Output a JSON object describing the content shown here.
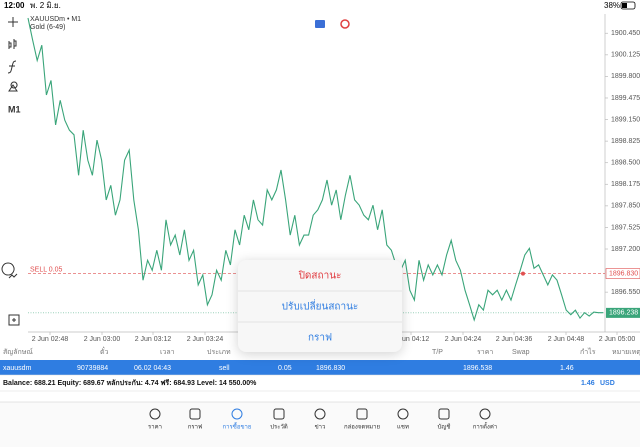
{
  "status": {
    "time": "12:00",
    "date": "พ. 2 มิ.ย.",
    "battery": "38%"
  },
  "chart": {
    "type": "line",
    "symbol": "XAUUSDm • M1",
    "description": "Gold (6-49)",
    "timeframe": "M1",
    "color": "#3aa57a",
    "values": [
      1900.68,
      1900.35,
      1900.04,
      1900.27,
      1899.52,
      1899.74,
      1899.07,
      1899.44,
      1899.14,
      1898.99,
      1898.92,
      1898.31,
      1898.99,
      1898.54,
      1898.31,
      1898.84,
      1898.54,
      1897.94,
      1898.16,
      1897.71,
      1897.94,
      1898.54,
      1898.69,
      1897.94,
      1897.49,
      1896.73,
      1897.03,
      1896.88,
      1897.18,
      1896.88,
      1897.64,
      1897.26,
      1897.41,
      1897.11,
      1897.49,
      1897.03,
      1897.18,
      1896.66,
      1896.81,
      1896.36,
      1896.51,
      1896.88,
      1896.73,
      1897.18,
      1896.96,
      1897.49,
      1897.26,
      1897.71,
      1897.49,
      1897.94,
      1897.64,
      1897.56,
      1898.09,
      1897.94,
      1898.09,
      1898.39,
      1897.94,
      1897.41,
      1897.71,
      1897.26,
      1897.41,
      1897.41,
      1897.71,
      1897.79,
      1897.94,
      1898.24,
      1897.86,
      1898.09,
      1897.64,
      1898.01,
      1898.31,
      1897.94,
      1897.86,
      1897.71,
      1897.64,
      1897.86,
      1897.49,
      1897.79,
      1897.26,
      1897.18,
      1896.96,
      1896.88,
      1897.03,
      1896.58,
      1896.43,
      1897.03,
      1896.73,
      1896.96,
      1896.81,
      1896.96,
      1896.81,
      1897.11,
      1897.33,
      1897.03,
      1896.88,
      1896.58,
      1896.36,
      1896.13,
      1896.36,
      1896.28,
      1896.58,
      1896.51,
      1896.58,
      1896.43,
      1896.58,
      1896.43,
      1896.66,
      1896.88,
      1897.11,
      1897.21,
      1896.91,
      1896.96,
      1896.81,
      1896.66,
      1896.81,
      1896.73,
      1896.51,
      1896.28,
      1896.21,
      1896.28,
      1896.16,
      1896.24,
      1896.19,
      1896.25,
      1896.24,
      1896.24
    ],
    "ylim": [
      1895.98,
      1900.74
    ],
    "yticks": [
      {
        "value": 1900.45,
        "label": "1900.450"
      },
      1900.125,
      {
        "value": 1899.8,
        "label": "1899.800"
      },
      1899.475,
      {
        "value": 1899.15,
        "label": "1899.150"
      },
      1898.825,
      {
        "value": 1898.5,
        "label": "1898.500"
      },
      1898.175,
      {
        "value": 1897.85,
        "label": "1897.850"
      },
      1897.525,
      {
        "value": 1897.2,
        "label": "1897.200"
      },
      {
        "value": 1896.55,
        "label": "1896.550"
      }
    ],
    "xticks": [
      "2 Jun 02:48",
      "2 Jun 03:00",
      "2 Jun 03:12",
      "2 Jun 03:24",
      "2 Jun 04:12",
      "2 Jun 04:24",
      "2 Jun 04:36",
      "2 Jun 04:48",
      "2 Jun 05:00"
    ],
    "sell_label": "SELL 0.05",
    "sell_price": {
      "value": 1896.83,
      "label": "1896.830"
    },
    "current_price": 1896.238
  },
  "menu": {
    "items": [
      "ปิดสถานะ",
      "ปรับเปลี่ยนสถานะ",
      "กราฟ"
    ]
  },
  "table": {
    "headers": [
      "สัญลักษณ์",
      "ตั๋ว",
      "เวลา",
      "ประเภท",
      "T/P",
      "ราคา",
      "Swap",
      "กำไร",
      "หมายเหตุ"
    ],
    "rows": [
      [
        "xauusdm",
        "90739884",
        "06.02 04:43",
        "sell",
        "0.05",
        "1896.830",
        "1896.538",
        "1.46"
      ]
    ]
  },
  "balance": {
    "text": "Balance: 688.21 Equity: 689.67 หลักประกัน: 4.74 ฟรี: 684.93 Level: 14 550.00%",
    "profit": "1.46",
    "currency": "USD"
  },
  "tabs": [
    "ราคา",
    "กราฟ",
    "การซื้อขาย",
    "ประวัติ",
    "ข่าว",
    "กล่องจดหมาย",
    "แชท",
    "บัญชี",
    "การตั้งค่า"
  ],
  "active_tab": 2
}
